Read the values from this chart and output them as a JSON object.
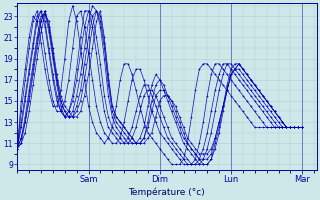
{
  "xlabel": "Température (°c)",
  "background_color": "#cce8e8",
  "plot_background_color": "#cce8e8",
  "grid_color": "#b0d0d0",
  "line_color": "#0000bb",
  "ylim": [
    8.5,
    24.2
  ],
  "yticks": [
    9,
    11,
    13,
    15,
    17,
    19,
    21,
    23
  ],
  "day_labels": [
    "Sam",
    "Dim",
    "Lun",
    "Mar"
  ],
  "day_positions": [
    0.25,
    0.5,
    0.75,
    1.0
  ],
  "xlim": [
    0.0,
    1.05
  ],
  "num_points": 73,
  "series": [
    [
      10.5,
      11.0,
      12.0,
      14.0,
      16.5,
      19.0,
      21.5,
      23.2,
      22.5,
      20.0,
      17.5,
      15.5,
      14.5,
      14.0,
      13.5,
      13.5,
      14.0,
      15.5,
      17.5,
      20.0,
      22.5,
      23.5,
      21.0,
      17.5,
      14.5,
      13.5,
      13.0,
      12.5,
      12.0,
      11.5,
      11.0,
      11.0,
      11.0,
      11.5,
      12.0,
      13.5,
      15.0,
      15.5,
      15.5,
      15.0,
      14.5,
      13.5,
      12.5,
      11.5,
      11.0,
      10.5,
      10.0,
      10.0,
      10.0,
      10.5,
      11.5,
      13.0,
      14.5,
      16.0,
      17.5,
      18.0,
      18.0,
      17.5,
      17.0,
      16.5,
      16.0,
      15.5,
      15.0,
      14.5,
      14.0,
      13.5,
      13.0,
      12.5,
      12.5,
      12.5,
      12.5,
      12.5,
      12.5
    ],
    [
      10.5,
      11.5,
      13.0,
      15.0,
      17.5,
      20.0,
      22.5,
      23.5,
      22.0,
      19.5,
      17.0,
      15.0,
      14.0,
      13.5,
      13.5,
      14.0,
      15.0,
      17.0,
      19.5,
      22.0,
      23.5,
      23.0,
      20.5,
      17.0,
      14.5,
      13.5,
      13.0,
      12.5,
      12.0,
      11.5,
      11.0,
      11.0,
      11.5,
      12.5,
      14.0,
      15.5,
      16.0,
      16.0,
      15.5,
      15.0,
      14.0,
      13.0,
      12.0,
      11.0,
      10.5,
      10.0,
      9.5,
      9.5,
      9.5,
      10.0,
      11.5,
      13.0,
      14.5,
      16.0,
      17.5,
      18.0,
      18.5,
      18.0,
      17.5,
      17.0,
      16.5,
      16.0,
      15.5,
      15.0,
      14.5,
      14.0,
      13.5,
      13.0,
      12.5,
      12.5,
      12.5,
      12.5,
      12.5
    ],
    [
      10.5,
      11.0,
      13.0,
      15.5,
      18.0,
      20.5,
      22.5,
      23.5,
      22.0,
      19.5,
      17.0,
      15.0,
      14.0,
      13.5,
      13.5,
      14.5,
      16.0,
      18.5,
      21.0,
      23.0,
      23.5,
      22.5,
      20.0,
      16.5,
      14.0,
      13.0,
      12.5,
      12.0,
      11.5,
      11.0,
      11.0,
      11.0,
      11.5,
      13.0,
      15.0,
      16.5,
      17.0,
      16.5,
      15.5,
      14.5,
      13.5,
      12.5,
      11.5,
      11.0,
      10.5,
      10.0,
      9.5,
      9.0,
      9.0,
      9.5,
      10.5,
      12.0,
      14.0,
      16.0,
      17.5,
      18.0,
      18.5,
      18.0,
      17.5,
      17.0,
      16.5,
      16.0,
      15.5,
      15.0,
      14.5,
      14.0,
      13.5,
      13.0,
      12.5,
      12.5,
      12.5,
      12.5,
      12.5
    ],
    [
      10.5,
      11.5,
      13.5,
      16.0,
      18.5,
      21.0,
      23.0,
      23.2,
      21.5,
      19.0,
      16.5,
      14.5,
      13.5,
      13.5,
      14.0,
      15.5,
      17.5,
      20.0,
      22.5,
      24.0,
      23.5,
      22.0,
      19.0,
      15.5,
      13.5,
      12.5,
      12.0,
      11.5,
      11.0,
      11.0,
      11.0,
      11.5,
      12.5,
      14.5,
      16.5,
      17.5,
      17.0,
      16.0,
      15.0,
      14.0,
      13.0,
      12.0,
      11.0,
      10.5,
      10.0,
      9.5,
      9.0,
      9.0,
      9.0,
      9.5,
      11.0,
      12.5,
      14.5,
      16.5,
      18.0,
      18.5,
      18.5,
      18.0,
      17.5,
      17.0,
      16.5,
      16.0,
      15.5,
      15.0,
      14.5,
      14.0,
      13.5,
      13.0,
      12.5,
      12.5,
      12.5,
      12.5,
      12.5
    ],
    [
      10.5,
      12.5,
      15.0,
      17.5,
      20.0,
      22.5,
      23.5,
      22.5,
      20.0,
      17.5,
      15.5,
      14.0,
      13.5,
      14.0,
      15.0,
      17.0,
      19.5,
      22.0,
      23.5,
      23.0,
      21.0,
      18.5,
      15.5,
      13.5,
      12.5,
      12.0,
      11.5,
      11.0,
      11.0,
      11.5,
      12.5,
      14.0,
      15.5,
      16.0,
      16.0,
      15.5,
      14.5,
      13.5,
      12.5,
      11.5,
      11.0,
      10.5,
      10.0,
      9.5,
      9.0,
      9.0,
      9.0,
      9.5,
      10.5,
      12.0,
      14.0,
      16.0,
      17.5,
      18.5,
      18.5,
      18.0,
      17.5,
      17.0,
      16.5,
      16.0,
      15.5,
      15.0,
      14.5,
      14.0,
      13.5,
      13.0,
      12.5,
      12.5,
      12.5,
      12.5,
      12.5,
      12.5,
      12.5
    ],
    [
      10.5,
      13.0,
      15.5,
      18.0,
      20.5,
      23.0,
      23.5,
      22.0,
      19.5,
      17.0,
      15.0,
      14.0,
      13.5,
      14.0,
      15.5,
      18.0,
      21.0,
      23.5,
      23.5,
      22.0,
      19.5,
      16.5,
      14.0,
      12.5,
      12.0,
      11.5,
      11.0,
      11.0,
      11.5,
      12.5,
      14.0,
      15.5,
      16.5,
      16.5,
      15.5,
      14.5,
      13.5,
      12.5,
      11.5,
      11.0,
      10.5,
      10.0,
      9.5,
      9.0,
      9.0,
      9.0,
      9.5,
      10.5,
      12.0,
      14.0,
      16.0,
      17.5,
      18.5,
      18.5,
      18.0,
      17.5,
      17.0,
      16.5,
      16.0,
      15.5,
      15.0,
      14.5,
      14.0,
      13.5,
      13.0,
      12.5,
      12.5,
      12.5,
      12.5,
      12.5,
      12.5,
      12.5,
      12.5
    ],
    [
      10.5,
      14.0,
      17.0,
      20.0,
      22.5,
      23.5,
      22.0,
      19.5,
      17.0,
      15.0,
      14.0,
      14.0,
      15.0,
      17.0,
      20.0,
      23.0,
      23.5,
      22.0,
      19.5,
      17.0,
      14.5,
      13.0,
      12.0,
      11.5,
      11.0,
      11.0,
      11.5,
      13.0,
      15.0,
      17.0,
      18.0,
      18.0,
      17.0,
      15.5,
      14.0,
      13.0,
      12.0,
      11.5,
      11.0,
      10.5,
      10.0,
      9.5,
      9.0,
      9.0,
      9.0,
      9.5,
      11.0,
      13.0,
      15.5,
      17.5,
      18.5,
      18.5,
      18.0,
      17.5,
      17.0,
      16.5,
      16.0,
      15.5,
      15.0,
      14.5,
      14.0,
      13.5,
      13.0,
      12.5,
      12.5,
      12.5,
      12.5,
      12.5,
      12.5,
      12.5,
      12.5,
      12.5,
      12.5
    ],
    [
      10.5,
      15.0,
      18.0,
      21.0,
      23.0,
      22.5,
      20.5,
      18.0,
      16.0,
      14.5,
      14.5,
      16.0,
      19.0,
      22.5,
      24.0,
      22.5,
      20.0,
      17.0,
      14.5,
      13.0,
      12.0,
      11.5,
      11.0,
      11.5,
      12.5,
      14.5,
      17.0,
      18.5,
      18.5,
      17.5,
      16.0,
      14.5,
      13.0,
      12.0,
      11.5,
      11.0,
      10.5,
      10.0,
      9.5,
      9.0,
      9.0,
      9.0,
      9.5,
      11.0,
      13.5,
      16.0,
      18.0,
      18.5,
      18.5,
      18.0,
      17.5,
      17.0,
      16.5,
      16.0,
      15.5,
      15.0,
      14.5,
      14.0,
      13.5,
      13.0,
      12.5,
      12.5,
      12.5,
      12.5,
      12.5,
      12.5,
      12.5,
      12.5,
      12.5,
      12.5,
      12.5,
      12.5,
      12.5
    ]
  ]
}
